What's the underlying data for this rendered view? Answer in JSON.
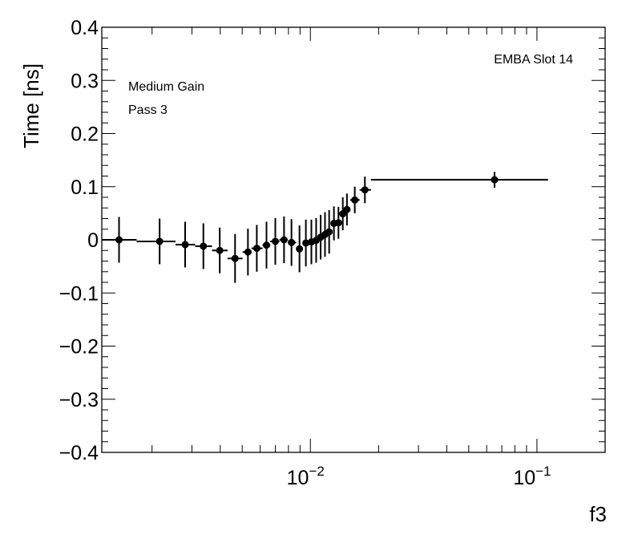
{
  "chart_data": {
    "type": "scatter",
    "x_scale": "log",
    "xlim": [
      0.0012,
      0.2
    ],
    "ylim": [
      -0.4,
      0.4
    ],
    "xlabel": "f3",
    "ylabel": "Time [ns]",
    "annotations": [
      "EMBA Slot 14",
      "Medium Gain",
      "Pass 3"
    ],
    "y_ticks": [
      "0.4",
      "0.3",
      "0.2",
      "0.1",
      "0",
      "−0.1",
      "−0.2",
      "−0.3",
      "−0.4"
    ],
    "x_ticks": [
      {
        "base": "10",
        "exp": "−2",
        "value": 0.01
      },
      {
        "base": "10",
        "exp": "−1",
        "value": 0.1
      }
    ],
    "grid": false,
    "colors": {
      "marker": "#000000",
      "axis": "#000000",
      "background": "#ffffff"
    },
    "series": [
      {
        "points": [
          {
            "x": 0.00143,
            "xlo": 0.0012,
            "xhi": 0.00171,
            "y": 0.0,
            "err": 0.043
          },
          {
            "x": 0.00216,
            "xlo": 0.00171,
            "xhi": 0.00254,
            "y": -0.003,
            "err": 0.043
          },
          {
            "x": 0.0028,
            "xlo": 0.00254,
            "xhi": 0.0031,
            "y": -0.009,
            "err": 0.043
          },
          {
            "x": 0.00337,
            "xlo": 0.0031,
            "xhi": 0.00368,
            "y": -0.012,
            "err": 0.043
          },
          {
            "x": 0.00398,
            "xlo": 0.00368,
            "xhi": 0.00431,
            "y": -0.02,
            "err": 0.043
          },
          {
            "x": 0.00465,
            "xlo": 0.00431,
            "xhi": 0.00502,
            "y": -0.035,
            "err": 0.046
          },
          {
            "x": 0.0053,
            "xlo": 0.00502,
            "xhi": 0.0055,
            "y": -0.023,
            "err": 0.044
          },
          {
            "x": 0.0058,
            "xlo": 0.0055,
            "xhi": 0.00615,
            "y": -0.016,
            "err": 0.044
          },
          {
            "x": 0.0064,
            "xlo": 0.00615,
            "xhi": 0.00665,
            "y": -0.01,
            "err": 0.044
          },
          {
            "x": 0.007,
            "xlo": 0.00665,
            "xhi": 0.0073,
            "y": -0.003,
            "err": 0.044
          },
          {
            "x": 0.00765,
            "xlo": 0.0073,
            "xhi": 0.00795,
            "y": 0.0,
            "err": 0.044
          },
          {
            "x": 0.00825,
            "xlo": 0.00795,
            "xhi": 0.00865,
            "y": -0.005,
            "err": 0.044
          },
          {
            "x": 0.00895,
            "xlo": 0.00865,
            "xhi": 0.00925,
            "y": -0.017,
            "err": 0.044
          },
          {
            "x": 0.00955,
            "xlo": 0.00925,
            "xhi": 0.00985,
            "y": -0.006,
            "err": 0.044
          },
          {
            "x": 0.0101,
            "xlo": 0.00985,
            "xhi": 0.01035,
            "y": -0.004,
            "err": 0.042
          },
          {
            "x": 0.0106,
            "xlo": 0.01035,
            "xhi": 0.01085,
            "y": -0.001,
            "err": 0.042
          },
          {
            "x": 0.0111,
            "xlo": 0.01085,
            "xhi": 0.01135,
            "y": 0.005,
            "err": 0.042
          },
          {
            "x": 0.0116,
            "xlo": 0.01135,
            "xhi": 0.01185,
            "y": 0.01,
            "err": 0.042
          },
          {
            "x": 0.0121,
            "xlo": 0.01185,
            "xhi": 0.0124,
            "y": 0.015,
            "err": 0.041
          },
          {
            "x": 0.0127,
            "xlo": 0.0124,
            "xhi": 0.013,
            "y": 0.031,
            "err": 0.032
          },
          {
            "x": 0.0133,
            "xlo": 0.013,
            "xhi": 0.0136,
            "y": 0.032,
            "err": 0.03
          },
          {
            "x": 0.0139,
            "xlo": 0.0136,
            "xhi": 0.0142,
            "y": 0.049,
            "err": 0.031
          },
          {
            "x": 0.0145,
            "xlo": 0.0142,
            "xhi": 0.015,
            "y": 0.057,
            "err": 0.03
          },
          {
            "x": 0.0157,
            "xlo": 0.015,
            "xhi": 0.0165,
            "y": 0.075,
            "err": 0.025
          },
          {
            "x": 0.0174,
            "xlo": 0.0165,
            "xhi": 0.0185,
            "y": 0.094,
            "err": 0.025
          },
          {
            "x": 0.065,
            "xlo": 0.0185,
            "xhi": 0.112,
            "y": 0.113,
            "err": 0.015
          }
        ]
      }
    ]
  }
}
